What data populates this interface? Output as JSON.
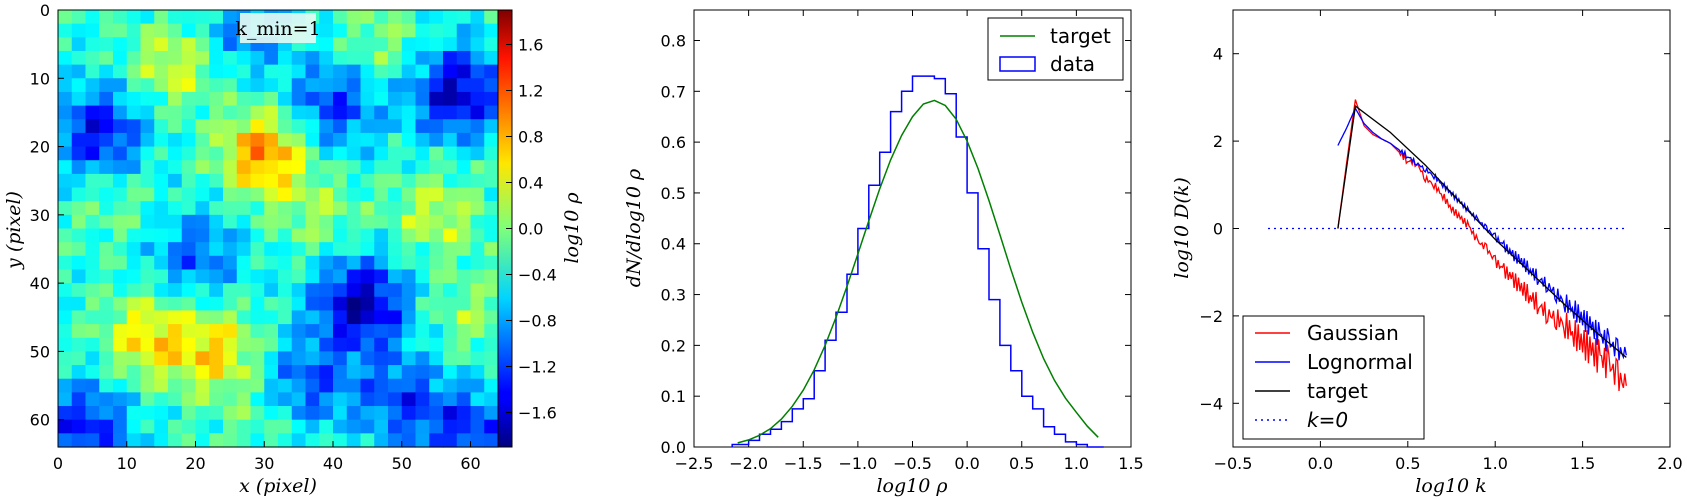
{
  "chart_data": [
    {
      "type": "heatmap",
      "annotation": "k_min=1",
      "xlabel": "x (pixel)",
      "ylabel": "y (pixel)",
      "xlim": [
        0,
        64
      ],
      "ylim": [
        64,
        0
      ],
      "xticks": [
        0,
        10,
        20,
        30,
        40,
        50,
        60
      ],
      "yticks": [
        0,
        10,
        20,
        30,
        40,
        50,
        60
      ],
      "colorbar": {
        "label": "log10 ρ",
        "range": [
          -1.9,
          1.9
        ],
        "ticks": [
          "1.6",
          "1.2",
          "0.8",
          "0.4",
          "0.0",
          "−0.4",
          "−0.8",
          "−1.2",
          "−1.6"
        ],
        "tick_values": [
          1.6,
          1.2,
          0.8,
          0.4,
          0.0,
          -0.4,
          -0.8,
          -1.2,
          -1.6
        ],
        "colormap": "jet"
      }
    },
    {
      "type": "line",
      "xlabel": "log10 ρ",
      "ylabel": "dN/dlog10 ρ",
      "xlim": [
        -2.5,
        1.5
      ],
      "ylim": [
        0.0,
        0.86
      ],
      "xticks": [
        "−2.5",
        "−2.0",
        "−1.5",
        "−1.0",
        "−0.5",
        "0.0",
        "0.5",
        "1.0",
        "1.5"
      ],
      "xtick_values": [
        -2.5,
        -2.0,
        -1.5,
        -1.0,
        -0.5,
        0.0,
        0.5,
        1.0,
        1.5
      ],
      "yticks": [
        "0.0",
        "0.1",
        "0.2",
        "0.3",
        "0.4",
        "0.5",
        "0.6",
        "0.7",
        "0.8"
      ],
      "ytick_values": [
        0.0,
        0.1,
        0.2,
        0.3,
        0.4,
        0.5,
        0.6,
        0.7,
        0.8
      ],
      "legend_position": "top-right",
      "series": [
        {
          "name": "target",
          "kind": "line",
          "color": "#008000",
          "x": [
            -2.1,
            -2.0,
            -1.9,
            -1.8,
            -1.7,
            -1.6,
            -1.5,
            -1.4,
            -1.3,
            -1.2,
            -1.1,
            -1.0,
            -0.9,
            -0.8,
            -0.7,
            -0.6,
            -0.5,
            -0.4,
            -0.3,
            -0.2,
            -0.1,
            0.0,
            0.1,
            0.2,
            0.3,
            0.4,
            0.5,
            0.6,
            0.7,
            0.8,
            0.9,
            1.0,
            1.1,
            1.2
          ],
          "y": [
            0.008,
            0.014,
            0.023,
            0.036,
            0.055,
            0.08,
            0.112,
            0.152,
            0.2,
            0.255,
            0.316,
            0.38,
            0.445,
            0.508,
            0.565,
            0.613,
            0.65,
            0.675,
            0.682,
            0.672,
            0.645,
            0.602,
            0.548,
            0.485,
            0.418,
            0.35,
            0.285,
            0.226,
            0.174,
            0.131,
            0.096,
            0.068,
            0.041,
            0.019
          ]
        },
        {
          "name": "data",
          "kind": "step-histogram",
          "color": "#0000ff",
          "bin_edges": [
            -2.15,
            -2.0,
            -1.9,
            -1.8,
            -1.7,
            -1.6,
            -1.5,
            -1.4,
            -1.3,
            -1.2,
            -1.1,
            -1.0,
            -0.9,
            -0.8,
            -0.7,
            -0.6,
            -0.5,
            -0.4,
            -0.3,
            -0.2,
            -0.1,
            0.0,
            0.1,
            0.2,
            0.3,
            0.4,
            0.5,
            0.6,
            0.7,
            0.8,
            0.9,
            1.0,
            1.1,
            1.25
          ],
          "counts": [
            0.005,
            0.013,
            0.025,
            0.035,
            0.05,
            0.075,
            0.095,
            0.15,
            0.21,
            0.265,
            0.34,
            0.43,
            0.515,
            0.58,
            0.66,
            0.7,
            0.73,
            0.73,
            0.725,
            0.695,
            0.61,
            0.5,
            0.39,
            0.29,
            0.2,
            0.15,
            0.1,
            0.075,
            0.04,
            0.025,
            0.01,
            0.005,
            0.0
          ]
        }
      ]
    },
    {
      "type": "line",
      "xlabel": "log10 k",
      "ylabel": "log10 D(k)",
      "xlim": [
        -0.5,
        2.0
      ],
      "ylim": [
        -5,
        5
      ],
      "xticks": [
        "−0.5",
        "0.0",
        "0.5",
        "1.0",
        "1.5",
        "2.0"
      ],
      "xtick_values": [
        -0.5,
        0.0,
        0.5,
        1.0,
        1.5,
        2.0
      ],
      "yticks": [
        "4",
        "2",
        "0",
        "−2",
        "−4"
      ],
      "ytick_values": [
        4,
        2,
        0,
        -2,
        -4
      ],
      "legend_position": "lower-left",
      "series": [
        {
          "name": "Gaussian",
          "color": "#ff0000",
          "x": [
            0.1,
            0.15,
            0.2,
            0.25,
            0.3,
            0.35,
            0.4,
            0.45,
            0.5,
            0.55,
            0.6,
            0.65,
            0.7,
            0.75,
            0.8,
            0.85,
            0.9,
            0.95,
            1.0,
            1.05,
            1.1,
            1.15,
            1.2,
            1.25,
            1.3,
            1.35,
            1.4,
            1.45,
            1.5,
            1.55,
            1.6,
            1.65,
            1.7,
            1.75
          ],
          "y": [
            0.0,
            1.5,
            2.95,
            2.35,
            2.15,
            2.05,
            1.95,
            1.75,
            1.55,
            1.5,
            1.15,
            1.0,
            0.75,
            0.45,
            0.25,
            0.05,
            -0.3,
            -0.45,
            -0.75,
            -0.95,
            -1.15,
            -1.35,
            -1.55,
            -1.75,
            -1.95,
            -2.05,
            -2.2,
            -2.4,
            -2.6,
            -2.8,
            -2.95,
            -3.1,
            -3.4,
            -3.6
          ]
        },
        {
          "name": "Lognormal",
          "color": "#0000ff",
          "x": [
            0.1,
            0.15,
            0.2,
            0.25,
            0.3,
            0.35,
            0.4,
            0.45,
            0.5,
            0.55,
            0.6,
            0.65,
            0.7,
            0.75,
            0.8,
            0.85,
            0.9,
            0.95,
            1.0,
            1.05,
            1.1,
            1.15,
            1.2,
            1.25,
            1.3,
            1.35,
            1.4,
            1.45,
            1.5,
            1.55,
            1.6,
            1.65,
            1.7,
            1.75
          ],
          "y": [
            1.9,
            2.3,
            2.75,
            2.4,
            2.2,
            2.05,
            1.95,
            1.8,
            1.65,
            1.5,
            1.35,
            1.2,
            1.0,
            0.8,
            0.6,
            0.4,
            0.2,
            0.0,
            -0.2,
            -0.4,
            -0.6,
            -0.75,
            -0.95,
            -1.15,
            -1.3,
            -1.5,
            -1.7,
            -1.85,
            -2.05,
            -2.25,
            -2.45,
            -2.6,
            -2.8,
            -2.9
          ]
        },
        {
          "name": "target",
          "color": "#000000",
          "x": [
            0.1,
            0.2,
            0.4,
            0.6,
            0.8,
            1.0,
            1.2,
            1.4,
            1.6,
            1.75
          ],
          "y": [
            0.0,
            2.8,
            2.2,
            1.45,
            0.6,
            -0.25,
            -1.0,
            -1.75,
            -2.45,
            -2.95
          ]
        },
        {
          "name": "k=0",
          "color": "#0000ff",
          "style": "dotted",
          "x": [
            -0.3,
            1.75
          ],
          "y": [
            0.0,
            0.0
          ]
        }
      ]
    }
  ]
}
